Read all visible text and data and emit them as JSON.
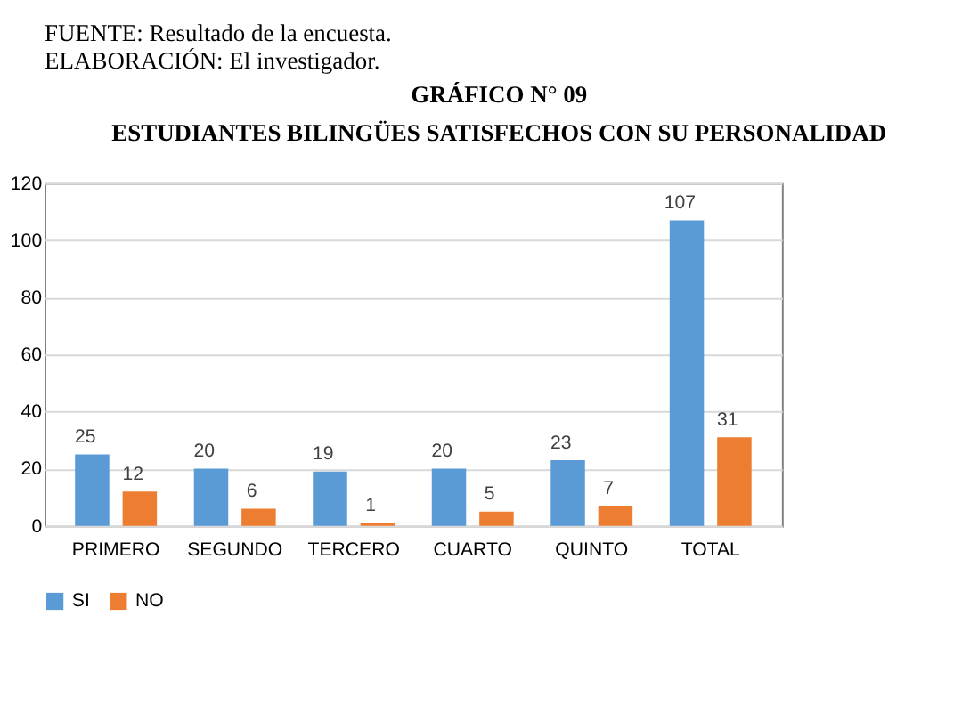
{
  "chart_data": {
    "type": "bar",
    "annotations": [
      "FUENTE: Resultado de la encuesta.",
      "ELABORACIÓN: El investigador."
    ],
    "subtitle": "GRÁFICO N° 09",
    "title": "ESTUDIANTES BILINGÜES SATISFECHOS CON SU PERSONALIDAD",
    "categories": [
      "PRIMERO",
      "SEGUNDO",
      "TERCERO",
      "CUARTO",
      "QUINTO",
      "TOTAL"
    ],
    "series": [
      {
        "name": "SI",
        "color": "#5b9bd5",
        "values": [
          25,
          20,
          19,
          20,
          23,
          107
        ]
      },
      {
        "name": "NO",
        "color": "#ed7d31",
        "values": [
          12,
          6,
          1,
          5,
          7,
          31
        ]
      }
    ],
    "ylim": [
      0,
      120
    ],
    "yticks": [
      0,
      20,
      40,
      60,
      80,
      100,
      120
    ],
    "grid": "y",
    "legend": "bottom",
    "data_labels": true
  }
}
